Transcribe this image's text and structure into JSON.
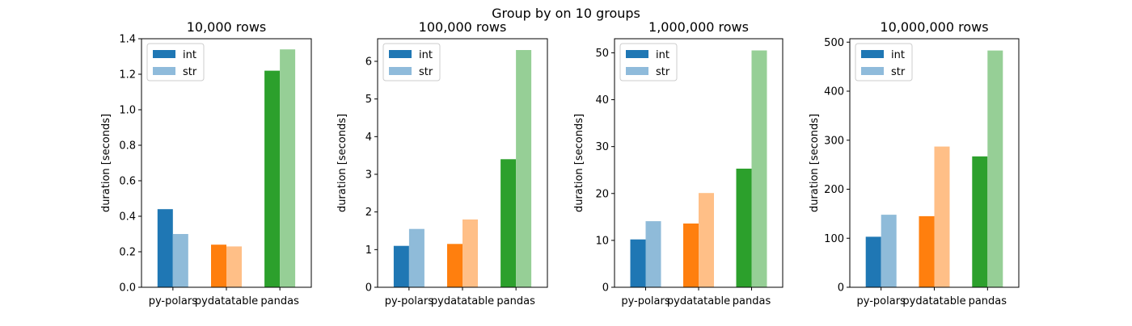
{
  "figure": {
    "suptitle": "Group by on 10 groups"
  },
  "chart_data": [
    {
      "type": "bar",
      "title": "10,000 rows",
      "xlabel": "",
      "ylabel": "duration [seconds]",
      "categories": [
        "py-polars",
        "pydatatable",
        "pandas"
      ],
      "ylim": [
        0,
        1.4
      ],
      "yticks": [
        0,
        0.2,
        0.4,
        0.6,
        0.8,
        1.0,
        1.2,
        1.4
      ],
      "ytick_labels": [
        "0.0",
        "0.2",
        "0.4",
        "0.6",
        "0.8",
        "1.0",
        "1.2",
        "1.4"
      ],
      "series": [
        {
          "name": "int",
          "values": [
            0.44,
            0.24,
            1.22
          ]
        },
        {
          "name": "str",
          "values": [
            0.3,
            0.23,
            1.34
          ]
        }
      ],
      "legend": {
        "position": "top-left",
        "entries": [
          "int",
          "str"
        ]
      }
    },
    {
      "type": "bar",
      "title": "100,000 rows",
      "xlabel": "",
      "ylabel": "duration [seconds]",
      "categories": [
        "py-polars",
        "pydatatable",
        "pandas"
      ],
      "ylim": [
        0,
        6.6
      ],
      "yticks": [
        0,
        1,
        2,
        3,
        4,
        5,
        6
      ],
      "ytick_labels": [
        "0",
        "1",
        "2",
        "3",
        "4",
        "5",
        "6"
      ],
      "series": [
        {
          "name": "int",
          "values": [
            1.1,
            1.15,
            3.4
          ]
        },
        {
          "name": "str",
          "values": [
            1.55,
            1.8,
            6.3
          ]
        }
      ],
      "legend": {
        "position": "top-left",
        "entries": [
          "int",
          "str"
        ]
      }
    },
    {
      "type": "bar",
      "title": "1,000,000 rows",
      "xlabel": "",
      "ylabel": "duration [seconds]",
      "categories": [
        "py-polars",
        "pydatatable",
        "pandas"
      ],
      "ylim": [
        0,
        53
      ],
      "yticks": [
        0,
        10,
        20,
        30,
        40,
        50
      ],
      "ytick_labels": [
        "0",
        "10",
        "20",
        "30",
        "40",
        "50"
      ],
      "series": [
        {
          "name": "int",
          "values": [
            10.2,
            13.6,
            25.3
          ]
        },
        {
          "name": "str",
          "values": [
            14.1,
            20.1,
            50.5
          ]
        }
      ],
      "legend": {
        "position": "top-left",
        "entries": [
          "int",
          "str"
        ]
      }
    },
    {
      "type": "bar",
      "title": "10,000,000 rows",
      "xlabel": "",
      "ylabel": "duration [seconds]",
      "categories": [
        "py-polars",
        "pydatatable",
        "pandas"
      ],
      "ylim": [
        0,
        507
      ],
      "yticks": [
        0,
        100,
        200,
        300,
        400,
        500
      ],
      "ytick_labels": [
        "0",
        "100",
        "200",
        "300",
        "400",
        "500"
      ],
      "series": [
        {
          "name": "int",
          "values": [
            103,
            145,
            267
          ]
        },
        {
          "name": "str",
          "values": [
            148,
            287,
            483
          ]
        }
      ],
      "legend": {
        "position": "top-left",
        "entries": [
          "int",
          "str"
        ]
      }
    }
  ],
  "colors": {
    "legend_int": "#1f77b4",
    "legend_str": "#8fbbdb",
    "category_int": [
      "#1f77b4",
      "#ff7f0e",
      "#2ca02c"
    ],
    "category_str": [
      "#8fbbd9",
      "#ffbf87",
      "#96cf96"
    ],
    "axis": "#000000",
    "legend_border": "#cccccc"
  }
}
